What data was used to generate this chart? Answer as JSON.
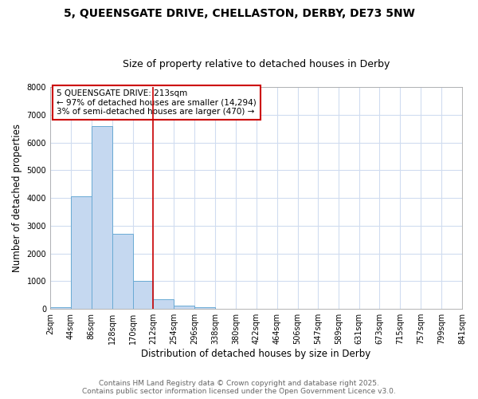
{
  "title1": "5, QUEENSGATE DRIVE, CHELLASTON, DERBY, DE73 5NW",
  "title2": "Size of property relative to detached houses in Derby",
  "xlabel": "Distribution of detached houses by size in Derby",
  "ylabel": "Number of detached properties",
  "bar_values": [
    50,
    4050,
    6600,
    2700,
    1000,
    350,
    120,
    50,
    10,
    0,
    0,
    0,
    0,
    0,
    0,
    0,
    0,
    0,
    0,
    0
  ],
  "bin_edges": [
    2,
    44,
    86,
    128,
    170,
    212,
    254,
    296,
    338,
    380,
    422,
    464,
    506,
    547,
    589,
    631,
    673,
    715,
    757,
    799,
    841
  ],
  "bar_color": "#c5d8f0",
  "bar_edgecolor": "#6aaad4",
  "ylim": [
    0,
    8000
  ],
  "yticks": [
    0,
    1000,
    2000,
    3000,
    4000,
    5000,
    6000,
    7000,
    8000
  ],
  "red_line_x": 212,
  "annotation_text": "5 QUEENSGATE DRIVE: 213sqm\n← 97% of detached houses are smaller (14,294)\n3% of semi-detached houses are larger (470) →",
  "annotation_box_color": "#ffffff",
  "annotation_border_color": "#cc0000",
  "footer_line1": "Contains HM Land Registry data © Crown copyright and database right 2025.",
  "footer_line2": "Contains public sector information licensed under the Open Government Licence v3.0.",
  "background_color": "#ffffff",
  "plot_bg_color": "#ffffff",
  "grid_color": "#d0dcf0",
  "title_fontsize": 10,
  "subtitle_fontsize": 9,
  "tick_label_fontsize": 7,
  "axis_label_fontsize": 8.5,
  "annotation_fontsize": 7.5,
  "footer_fontsize": 6.5
}
